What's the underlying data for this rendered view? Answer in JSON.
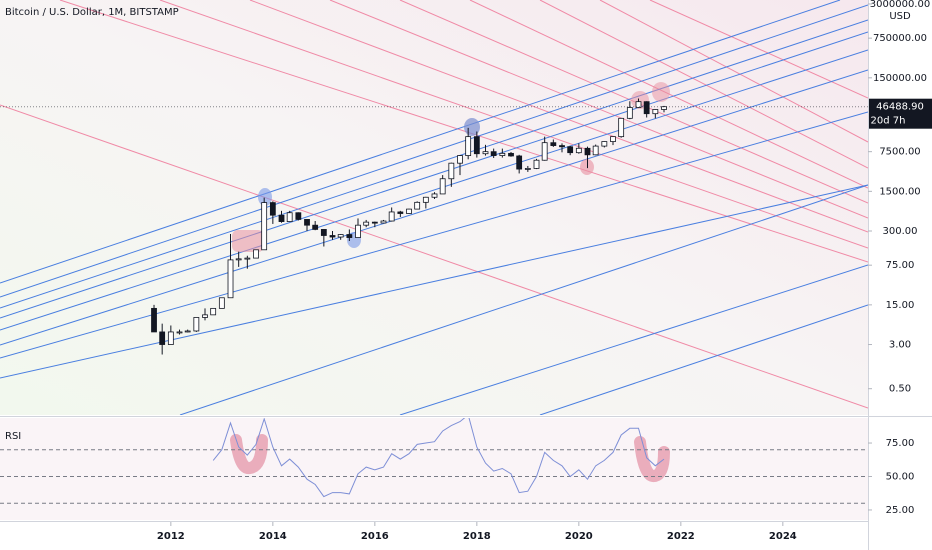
{
  "chart_data": [
    {
      "type": "candlestick",
      "title": "Bitcoin / U.S. Dollar, 1M, BITSTAMP",
      "y_unit": "USD",
      "last_price": {
        "value": 46488.9,
        "label": "46488.90"
      },
      "countdown": "20d 7h",
      "log_scale": true,
      "up_color": "#ffffff",
      "down_color": "#131722",
      "x": [
        2011.67,
        2011.83,
        2012.0,
        2012.17,
        2012.33,
        2012.5,
        2012.67,
        2012.83,
        2013.0,
        2013.17,
        2013.33,
        2013.5,
        2013.67,
        2013.83,
        2014.0,
        2014.17,
        2014.33,
        2014.5,
        2014.67,
        2014.83,
        2015.0,
        2015.17,
        2015.33,
        2015.5,
        2015.67,
        2015.83,
        2016.0,
        2016.17,
        2016.33,
        2016.5,
        2016.67,
        2016.83,
        2017.0,
        2017.17,
        2017.33,
        2017.5,
        2017.67,
        2017.83,
        2018.0,
        2018.17,
        2018.33,
        2018.5,
        2018.67,
        2018.83,
        2019.0,
        2019.17,
        2019.33,
        2019.5,
        2019.67,
        2019.83,
        2020.0,
        2020.17,
        2020.33,
        2020.5,
        2020.67,
        2020.83,
        2021.0,
        2021.17,
        2021.33,
        2021.5,
        2021.67
      ],
      "open": [
        13,
        5,
        3,
        5,
        5,
        5.2,
        9,
        10,
        13,
        20,
        93,
        97,
        100,
        140,
        950,
        570,
        440,
        630,
        480,
        380,
        320,
        250,
        235,
        260,
        230,
        380,
        430,
        415,
        450,
        650,
        610,
        730,
        960,
        1180,
        1350,
        2500,
        4700,
        6400,
        13800,
        6900,
        7500,
        6400,
        7000,
        6300,
        3700,
        3800,
        5300,
        10800,
        9600,
        9150,
        7200,
        8600,
        6600,
        9400,
        11300,
        13800,
        29000,
        45000,
        57000,
        35000,
        41500
      ],
      "high": [
        15,
        7,
        6.5,
        5.5,
        5.5,
        9,
        13,
        13,
        20,
        266,
        130,
        110,
        140,
        1160,
        1000,
        680,
        680,
        640,
        480,
        450,
        320,
        300,
        265,
        320,
        500,
        470,
        440,
        470,
        780,
        680,
        740,
        1000,
        1200,
        1450,
        2900,
        4800,
        6500,
        19700,
        17000,
        9900,
        8500,
        8500,
        7400,
        6600,
        4200,
        5600,
        13800,
        12300,
        10500,
        9500,
        10500,
        9200,
        10000,
        11400,
        12400,
        29000,
        58000,
        64800,
        58000,
        42000,
        48000
      ],
      "low": [
        5,
        2,
        3,
        4.5,
        4.9,
        5,
        8,
        10,
        13,
        20,
        70,
        65,
        100,
        140,
        400,
        420,
        440,
        460,
        300,
        310,
        160,
        210,
        210,
        200,
        230,
        350,
        350,
        410,
        440,
        530,
        600,
        720,
        750,
        1100,
        1350,
        1800,
        2900,
        5500,
        5900,
        6400,
        5800,
        5900,
        6100,
        3100,
        3300,
        3700,
        5200,
        9100,
        7300,
        6500,
        6900,
        3850,
        6500,
        8900,
        9800,
        13200,
        28000,
        44000,
        30000,
        29000,
        37000
      ],
      "close": [
        5,
        3,
        5,
        5,
        5.2,
        9,
        10,
        13,
        20,
        93,
        97,
        100,
        140,
        950,
        570,
        440,
        630,
        480,
        380,
        320,
        250,
        235,
        260,
        230,
        380,
        430,
        415,
        450,
        650,
        610,
        730,
        960,
        1180,
        1350,
        2500,
        4700,
        6400,
        13800,
        6900,
        7500,
        6400,
        7000,
        6300,
        3700,
        3800,
        5300,
        10800,
        9600,
        9150,
        7200,
        8600,
        6600,
        9400,
        11300,
        13800,
        29000,
        45000,
        57000,
        35000,
        41500,
        46488.9
      ],
      "xlim": [
        2008.65,
        2025.67
      ],
      "xticks": [
        2012,
        2014,
        2016,
        2018,
        2020,
        2022,
        2024
      ],
      "ylim": [
        0.172,
        3525000
      ],
      "yticks": [
        {
          "value": 3000000,
          "label": "3000000.00"
        },
        {
          "value": 750000,
          "label": "750000.00"
        },
        {
          "value": 150000,
          "label": "150000.00"
        },
        {
          "value": 7500,
          "label": "7500.00"
        },
        {
          "value": 1500,
          "label": "1500.00"
        },
        {
          "value": 300,
          "label": "300.00"
        },
        {
          "value": 75,
          "label": "75.00"
        },
        {
          "value": 15,
          "label": "15.00"
        },
        {
          "value": 3,
          "label": "3.00"
        },
        {
          "value": 0.5,
          "label": "0.50"
        }
      ]
    },
    {
      "type": "line",
      "title": "RSI",
      "color": "#7e8fd6",
      "x": [
        2012.83,
        2013.0,
        2013.17,
        2013.33,
        2013.5,
        2013.67,
        2013.83,
        2014.0,
        2014.17,
        2014.33,
        2014.5,
        2014.67,
        2014.83,
        2015.0,
        2015.17,
        2015.33,
        2015.5,
        2015.67,
        2015.83,
        2016.0,
        2016.17,
        2016.33,
        2016.5,
        2016.67,
        2016.83,
        2017.0,
        2017.17,
        2017.33,
        2017.5,
        2017.67,
        2017.83,
        2018.0,
        2018.17,
        2018.33,
        2018.5,
        2018.67,
        2018.83,
        2019.0,
        2019.17,
        2019.33,
        2019.5,
        2019.67,
        2019.83,
        2020.0,
        2020.17,
        2020.33,
        2020.5,
        2020.67,
        2020.83,
        2021.0,
        2021.17,
        2021.33,
        2021.5,
        2021.67
      ],
      "values": [
        62,
        70,
        90,
        72,
        66,
        74,
        93,
        72,
        58,
        63,
        57,
        48,
        44,
        35,
        38,
        38,
        37,
        52,
        57,
        55,
        57,
        67,
        63,
        67,
        74,
        75,
        76,
        84,
        88,
        91,
        96,
        72,
        60,
        54,
        56,
        52,
        38,
        39,
        50,
        68,
        62,
        58,
        50,
        55,
        48,
        58,
        62,
        68,
        81,
        86,
        86,
        64,
        58,
        63
      ],
      "levels": [
        70,
        50,
        30
      ],
      "ylim": [
        17.5,
        93.7
      ],
      "yticks": [
        {
          "value": 75,
          "label": "75.00"
        },
        {
          "value": 50,
          "label": "50.00"
        },
        {
          "value": 25,
          "label": "25.00"
        }
      ]
    }
  ]
}
